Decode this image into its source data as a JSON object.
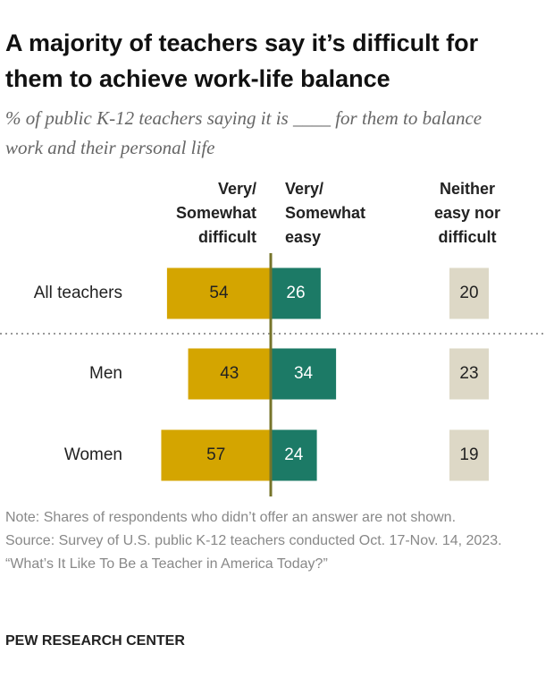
{
  "chart_data": {
    "type": "diverging_bar",
    "title": "A majority of teachers say it’s difficult for them to achieve work-life balance",
    "subtitle": "% of public K-12 teachers saying it is ____ for them to balance work and their personal life",
    "categories": [
      "All teachers",
      "Men",
      "Women"
    ],
    "series": [
      {
        "name": "Very/ Somewhat difficult",
        "color": "#d4a500",
        "values": [
          54,
          43,
          57
        ]
      },
      {
        "name": "Very/ Somewhat easy",
        "color": "#1c7a66",
        "values": [
          26,
          34,
          24
        ]
      },
      {
        "name": "Neither easy nor difficult",
        "color": "#ddd8c6",
        "values": [
          20,
          23,
          19
        ]
      }
    ],
    "notes": [
      "Note: Shares of respondents who didn’t offer an answer are not shown.",
      "Source: Survey of U.S. public K-12 teachers conducted Oct. 17-Nov. 14, 2023.",
      "“What’s It Like To Be a Teacher in America Today?”"
    ],
    "source": "PEW RESEARCH CENTER"
  }
}
